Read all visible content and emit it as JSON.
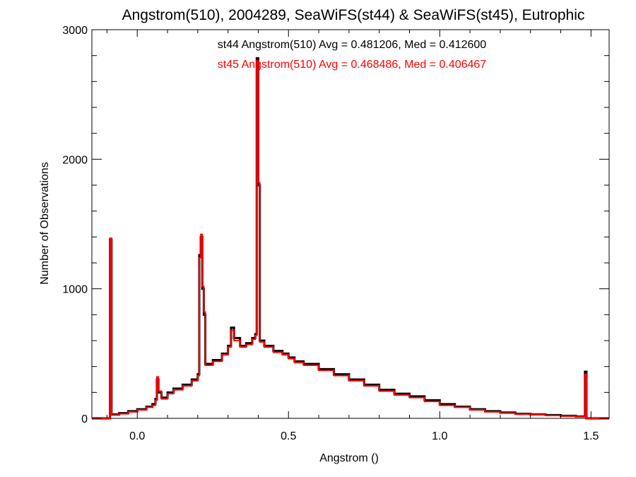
{
  "chart_data": {
    "type": "histogram",
    "title": "Angstrom(510), 2004289, SeaWiFS(st44) & SeaWiFS(st45), Eutrophic",
    "xlabel": "Angstrom ()",
    "ylabel": "Number of Observations",
    "xlim": [
      -0.15,
      1.56
    ],
    "ylim": [
      0,
      3000
    ],
    "xticks": [
      0.0,
      0.5,
      1.0,
      1.5
    ],
    "xtick_labels": [
      "0.0",
      "0.5",
      "1.0",
      "1.5"
    ],
    "yticks": [
      0,
      1000,
      2000,
      3000
    ],
    "ytick_labels": [
      "0",
      "1000",
      "2000",
      "3000"
    ],
    "annotations": [
      {
        "text": "st44 Angstrom(510) Avg = 0.481206, Med = 0.412600",
        "color": "#000000"
      },
      {
        "text": "st45 Angstrom(510) Avg = 0.468486, Med = 0.406467",
        "color": "#ff0000"
      }
    ],
    "series": [
      {
        "name": "st44",
        "color": "#000000",
        "points": [
          [
            -0.15,
            0
          ],
          [
            -0.09,
            0
          ],
          [
            -0.09,
            1380
          ],
          [
            -0.085,
            1380
          ],
          [
            -0.085,
            30
          ],
          [
            -0.06,
            40
          ],
          [
            -0.03,
            55
          ],
          [
            0.0,
            70
          ],
          [
            0.03,
            90
          ],
          [
            0.05,
            110
          ],
          [
            0.06,
            150
          ],
          [
            0.065,
            300
          ],
          [
            0.07,
            200
          ],
          [
            0.08,
            160
          ],
          [
            0.1,
            200
          ],
          [
            0.12,
            230
          ],
          [
            0.15,
            260
          ],
          [
            0.18,
            300
          ],
          [
            0.2,
            340
          ],
          [
            0.205,
            1260
          ],
          [
            0.21,
            1400
          ],
          [
            0.215,
            1000
          ],
          [
            0.22,
            800
          ],
          [
            0.225,
            420
          ],
          [
            0.25,
            450
          ],
          [
            0.28,
            500
          ],
          [
            0.3,
            560
          ],
          [
            0.31,
            700
          ],
          [
            0.32,
            620
          ],
          [
            0.34,
            560
          ],
          [
            0.36,
            580
          ],
          [
            0.38,
            620
          ],
          [
            0.39,
            650
          ],
          [
            0.395,
            2780
          ],
          [
            0.4,
            1800
          ],
          [
            0.405,
            600
          ],
          [
            0.42,
            560
          ],
          [
            0.45,
            520
          ],
          [
            0.48,
            500
          ],
          [
            0.5,
            470
          ],
          [
            0.52,
            440
          ],
          [
            0.55,
            420
          ],
          [
            0.6,
            380
          ],
          [
            0.65,
            340
          ],
          [
            0.7,
            300
          ],
          [
            0.75,
            260
          ],
          [
            0.8,
            220
          ],
          [
            0.85,
            190
          ],
          [
            0.9,
            170
          ],
          [
            0.95,
            140
          ],
          [
            1.0,
            110
          ],
          [
            1.05,
            90
          ],
          [
            1.1,
            70
          ],
          [
            1.15,
            55
          ],
          [
            1.2,
            45
          ],
          [
            1.25,
            35
          ],
          [
            1.3,
            30
          ],
          [
            1.35,
            25
          ],
          [
            1.4,
            20
          ],
          [
            1.45,
            15
          ],
          [
            1.475,
            15
          ],
          [
            1.48,
            360
          ],
          [
            1.485,
            360
          ],
          [
            1.485,
            0
          ],
          [
            1.56,
            0
          ]
        ]
      },
      {
        "name": "st45",
        "color": "#ff0000",
        "points": [
          [
            -0.15,
            0
          ],
          [
            -0.09,
            0
          ],
          [
            -0.09,
            1390
          ],
          [
            -0.085,
            1390
          ],
          [
            -0.085,
            25
          ],
          [
            -0.06,
            35
          ],
          [
            -0.03,
            50
          ],
          [
            0.0,
            65
          ],
          [
            0.03,
            85
          ],
          [
            0.05,
            100
          ],
          [
            0.06,
            140
          ],
          [
            0.065,
            320
          ],
          [
            0.07,
            210
          ],
          [
            0.08,
            150
          ],
          [
            0.1,
            190
          ],
          [
            0.12,
            220
          ],
          [
            0.15,
            250
          ],
          [
            0.18,
            290
          ],
          [
            0.2,
            330
          ],
          [
            0.205,
            1240
          ],
          [
            0.21,
            1420
          ],
          [
            0.215,
            1020
          ],
          [
            0.22,
            820
          ],
          [
            0.225,
            410
          ],
          [
            0.25,
            440
          ],
          [
            0.28,
            490
          ],
          [
            0.3,
            550
          ],
          [
            0.31,
            680
          ],
          [
            0.32,
            600
          ],
          [
            0.34,
            550
          ],
          [
            0.36,
            570
          ],
          [
            0.38,
            610
          ],
          [
            0.39,
            640
          ],
          [
            0.395,
            2760
          ],
          [
            0.4,
            1820
          ],
          [
            0.405,
            590
          ],
          [
            0.42,
            550
          ],
          [
            0.45,
            510
          ],
          [
            0.48,
            490
          ],
          [
            0.5,
            460
          ],
          [
            0.52,
            430
          ],
          [
            0.55,
            410
          ],
          [
            0.6,
            370
          ],
          [
            0.65,
            330
          ],
          [
            0.7,
            290
          ],
          [
            0.75,
            250
          ],
          [
            0.8,
            210
          ],
          [
            0.85,
            180
          ],
          [
            0.9,
            160
          ],
          [
            0.95,
            130
          ],
          [
            1.0,
            100
          ],
          [
            1.05,
            85
          ],
          [
            1.1,
            65
          ],
          [
            1.15,
            50
          ],
          [
            1.2,
            40
          ],
          [
            1.25,
            32
          ],
          [
            1.3,
            28
          ],
          [
            1.35,
            22
          ],
          [
            1.4,
            18
          ],
          [
            1.45,
            14
          ],
          [
            1.475,
            14
          ],
          [
            1.48,
            340
          ],
          [
            1.485,
            340
          ],
          [
            1.485,
            0
          ],
          [
            1.56,
            0
          ]
        ]
      }
    ]
  }
}
